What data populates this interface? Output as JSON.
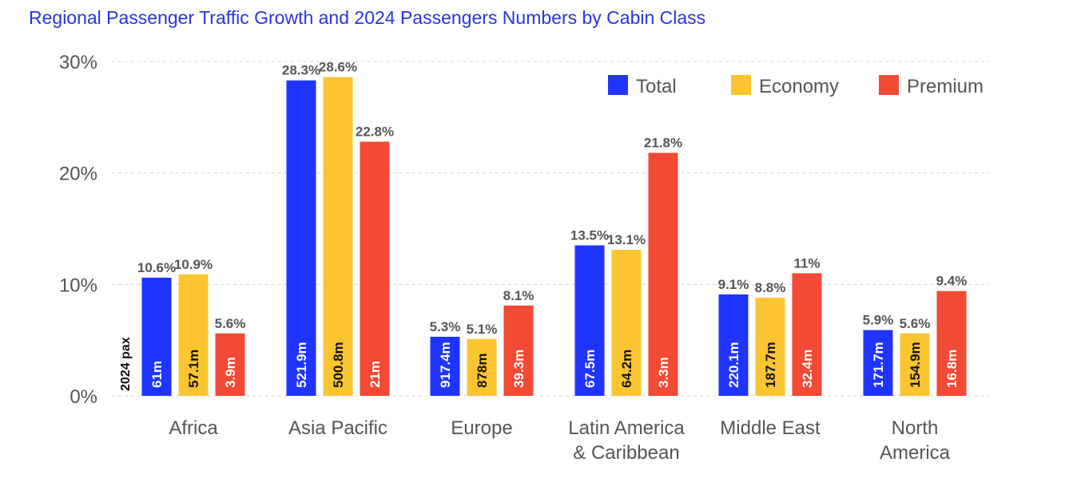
{
  "chart_data": {
    "type": "bar",
    "title": "Regional Passenger Traffic Growth and 2024 Passengers Numbers by Cabin Class",
    "categories": [
      "Africa",
      "Asia Pacific",
      "Europe",
      "Latin America & Caribbean",
      "Middle East",
      "North America"
    ],
    "category_lines": [
      [
        "Africa"
      ],
      [
        "Asia Pacific"
      ],
      [
        "Europe"
      ],
      [
        "Latin America",
        "& Caribbean"
      ],
      [
        "Middle East"
      ],
      [
        "North",
        "America"
      ]
    ],
    "series": [
      {
        "name": "Total",
        "color": "#1f35ff",
        "values": [
          10.6,
          28.3,
          5.3,
          13.5,
          9.1,
          5.9
        ],
        "labels": [
          "10.6%",
          "28.3%",
          "5.3%",
          "13.5%",
          "9.1%",
          "5.9%"
        ],
        "pax": [
          "61m",
          "521.9m",
          "917.4m",
          "67.5m",
          "220.1m",
          "171.7m"
        ]
      },
      {
        "name": "Economy",
        "color": "#fbc531",
        "values": [
          10.9,
          28.6,
          5.1,
          13.1,
          8.8,
          5.6
        ],
        "labels": [
          "10.9%",
          "28.6%",
          "5.1%",
          "13.1%",
          "8.8%",
          "5.6%"
        ],
        "pax": [
          "57.1m",
          "500.8m",
          "878m",
          "64.2m",
          "187.7m",
          "154.9m"
        ]
      },
      {
        "name": "Premium",
        "color": "#f24a35",
        "values": [
          5.6,
          22.8,
          8.1,
          21.8,
          11,
          9.4
        ],
        "labels": [
          "5.6%",
          "22.8%",
          "8.1%",
          "21.8%",
          "11%",
          "9.4%"
        ],
        "pax": [
          "3.9m",
          "21m",
          "39.3m",
          "3.3m",
          "32.4m",
          "16.8m"
        ]
      }
    ],
    "yticks": [
      0,
      10,
      20,
      30
    ],
    "ytick_labels": [
      "0%",
      "10%",
      "20%",
      "30%"
    ],
    "ylim": [
      0,
      30
    ],
    "side_label": "2024 pax",
    "grid": true,
    "legend": "top-right"
  }
}
